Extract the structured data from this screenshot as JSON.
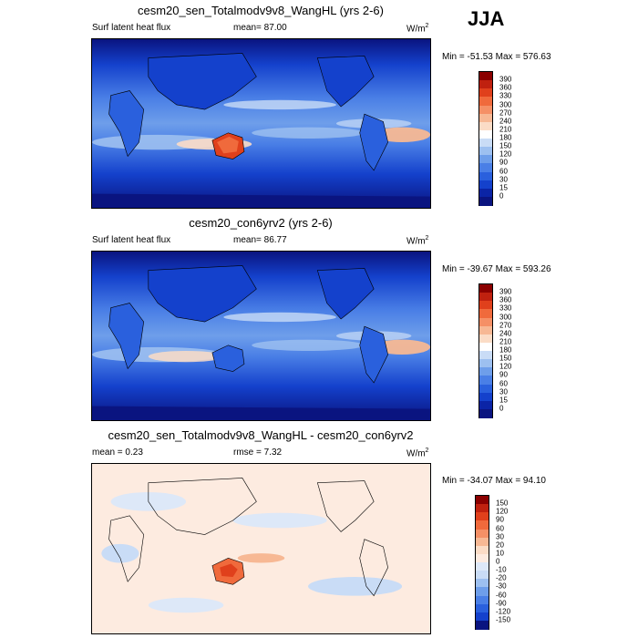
{
  "season": "JJA",
  "panels": [
    {
      "title": "cesm20_sen_Totalmodv9v8_WangHL (yrs 2-6)",
      "left_label": "Surf latent heat flux",
      "center_label": "mean=  87.00",
      "units": "W/m",
      "units_sup": "2",
      "minmax": "Min = -51.53 Max = 576.63",
      "colorbar_labels": [
        "390",
        "360",
        "330",
        "300",
        "270",
        "240",
        "210",
        "180",
        "150",
        "120",
        "90",
        "60",
        "30",
        "15",
        "0"
      ],
      "colorbar_colors": [
        "#8b0000",
        "#c0210f",
        "#e0401c",
        "#f06a3c",
        "#f59066",
        "#f7b894",
        "#fbdcc6",
        "#ffffff",
        "#c9dcf6",
        "#9dc0f0",
        "#6e9eea",
        "#4a7fe6",
        "#2a60dd",
        "#1441cc",
        "#0b24a6",
        "#0a1480"
      ]
    },
    {
      "title": "cesm20_con6yrv2 (yrs 2-6)",
      "left_label": "Surf latent heat flux",
      "center_label": "mean=  86.77",
      "units": "W/m",
      "units_sup": "2",
      "minmax": "Min = -39.67 Max = 593.26",
      "colorbar_labels": [
        "390",
        "360",
        "330",
        "300",
        "270",
        "240",
        "210",
        "180",
        "150",
        "120",
        "90",
        "60",
        "30",
        "15",
        "0"
      ],
      "colorbar_colors": [
        "#8b0000",
        "#c0210f",
        "#e0401c",
        "#f06a3c",
        "#f59066",
        "#f7b894",
        "#fbdcc6",
        "#ffffff",
        "#c9dcf6",
        "#9dc0f0",
        "#6e9eea",
        "#4a7fe6",
        "#2a60dd",
        "#1441cc",
        "#0b24a6",
        "#0a1480"
      ]
    },
    {
      "title": "cesm20_sen_Totalmodv9v8_WangHL - cesm20_con6yrv2",
      "left_label": "mean =   0.23",
      "center_label": "rmse =   7.32",
      "units": "W/m",
      "units_sup": "2",
      "minmax": "Min = -34.07 Max =  94.10",
      "colorbar_labels": [
        "150",
        "120",
        "90",
        "60",
        "30",
        "20",
        "10",
        "0",
        "-10",
        "-20",
        "-30",
        "-60",
        "-90",
        "-120",
        "-150"
      ],
      "colorbar_colors": [
        "#8b0000",
        "#c0210f",
        "#e0401c",
        "#f06a3c",
        "#f59066",
        "#f7b894",
        "#fbdcc6",
        "#fdebe0",
        "#dde8f8",
        "#c9dcf6",
        "#9dc0f0",
        "#6e9eea",
        "#4a7fe6",
        "#2a60dd",
        "#1441cc",
        "#0a1480"
      ]
    }
  ]
}
